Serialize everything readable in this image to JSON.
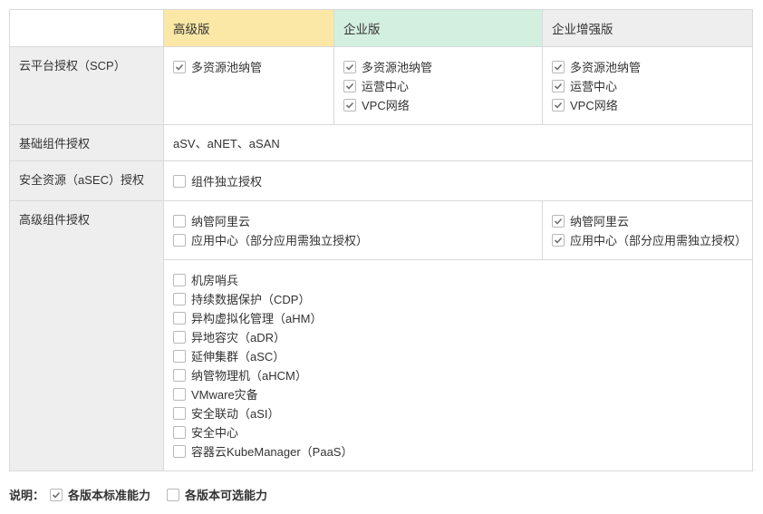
{
  "colors": {
    "border": "#d9d9d9",
    "row_label_bg": "#eeeeee",
    "header_advanced_bg": "#fbe8a6",
    "header_enterprise_bg": "#d3efdf",
    "header_enhanced_bg": "#eeeeee",
    "check_stroke": "#6f6f6f",
    "text": "#333333"
  },
  "headers": {
    "advanced": "高级版",
    "enterprise": "企业版",
    "enhanced": "企业增强版"
  },
  "rows": {
    "scp": {
      "label": "云平台授权（SCP）",
      "advanced": [
        {
          "label": "多资源池纳管",
          "checked": true
        }
      ],
      "enterprise": [
        {
          "label": "多资源池纳管",
          "checked": true
        },
        {
          "label": "运营中心",
          "checked": true
        },
        {
          "label": "VPC网络",
          "checked": true
        }
      ],
      "enhanced": [
        {
          "label": "多资源池纳管",
          "checked": true
        },
        {
          "label": "运营中心",
          "checked": true
        },
        {
          "label": "VPC网络",
          "checked": true
        }
      ]
    },
    "base": {
      "label": "基础组件授权",
      "text": "aSV、aNET、aSAN"
    },
    "asec": {
      "label": "安全资源（aSEC）授权",
      "item": {
        "label": "组件独立授权",
        "checked": false
      }
    },
    "advcomp": {
      "label": "高级组件授权",
      "left_block": [
        {
          "label": "纳管阿里云",
          "checked": false
        },
        {
          "label": "应用中心（部分应用需独立授权）",
          "checked": false
        }
      ],
      "right_block": [
        {
          "label": "纳管阿里云",
          "checked": true
        },
        {
          "label": "应用中心（部分应用需独立授权）",
          "checked": true
        }
      ],
      "addons": [
        {
          "label": "机房哨兵",
          "checked": false
        },
        {
          "label": "持续数据保护（CDP）",
          "checked": false
        },
        {
          "label": "异构虚拟化管理（aHM）",
          "checked": false
        },
        {
          "label": "异地容灾（aDR）",
          "checked": false
        },
        {
          "label": "延伸集群（aSC）",
          "checked": false
        },
        {
          "label": "纳管物理机（aHCM）",
          "checked": false
        },
        {
          "label": "VMware灾备",
          "checked": false
        },
        {
          "label": "安全联动（aSI）",
          "checked": false
        },
        {
          "label": "安全中心",
          "checked": false
        },
        {
          "label": "容器云KubeManager（PaaS）",
          "checked": false
        }
      ]
    }
  },
  "legend": {
    "title": "说明：",
    "standard": {
      "label": "各版本标准能力",
      "checked": true
    },
    "optional": {
      "label": "各版本可选能力",
      "checked": false
    }
  }
}
